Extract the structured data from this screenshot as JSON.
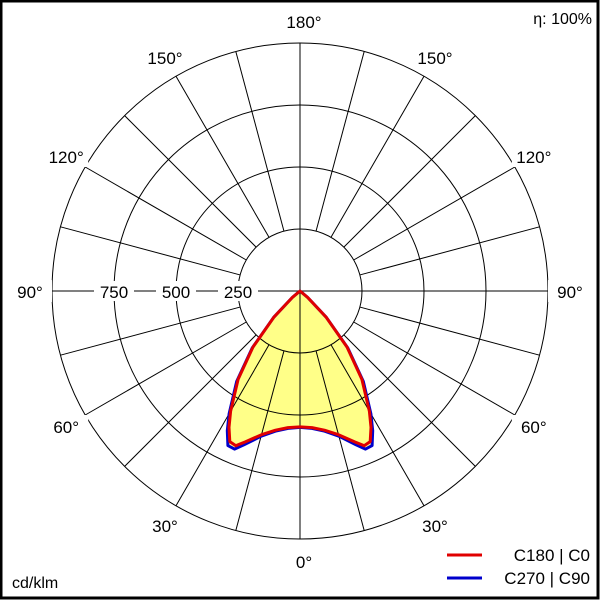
{
  "chart_data": {
    "type": "polar",
    "title": "",
    "efficiency_label": "η: 100%",
    "unit_label": "cd/klm",
    "radial_ticks": [
      250,
      500,
      750
    ],
    "radial_max": 1000,
    "angle_labels": [
      "0°",
      "30°",
      "60°",
      "90°",
      "120°",
      "150°",
      "180°"
    ],
    "angle_label_values": [
      0,
      30,
      60,
      90,
      120,
      150,
      180
    ],
    "grid_angle_step": 15,
    "grid": true,
    "legend_placement": "bottom-right",
    "gamma": [
      0,
      5,
      10,
      15,
      20,
      22.5,
      25,
      27.5,
      30,
      35,
      40,
      45,
      50,
      55,
      60,
      90,
      120,
      150,
      180
    ],
    "series": [
      {
        "name": "C270 | C90",
        "color": "#0000cc",
        "values": [
          550,
          556,
          574,
          606,
          660,
          690,
          688,
          635,
          572,
          445,
          300,
          150,
          40,
          0,
          0,
          0,
          0,
          0,
          0
        ]
      },
      {
        "name": "C180 | C0",
        "color": "#e00000",
        "values": [
          548,
          553,
          570,
          600,
          648,
          675,
          670,
          620,
          560,
          435,
          295,
          148,
          40,
          0,
          0,
          0,
          0,
          0,
          0
        ]
      }
    ],
    "fill_color": "#ffff88"
  }
}
